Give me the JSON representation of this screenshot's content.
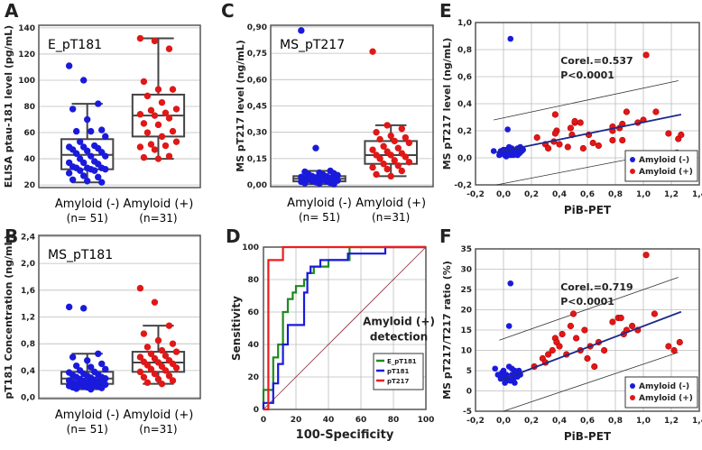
{
  "colors": {
    "neg": "#1a1adc",
    "pos": "#e01818",
    "green": "#1f8a1f",
    "blue": "#1a1adc",
    "red": "#ee1c1c",
    "grid": "#bbbbbb"
  },
  "chart_data": [
    {
      "id": "A",
      "panel_label": "A",
      "type": "box",
      "title": "E_pT181",
      "ylabel": "ELISA ptau-181 level (pg/mL)",
      "ylim": [
        18,
        142
      ],
      "yticks": [
        20,
        40,
        60,
        80,
        100,
        120,
        140
      ],
      "tick_labels": [
        "20",
        "40",
        "60",
        "80",
        "100",
        "120",
        "140"
      ],
      "groups": [
        {
          "name": "Amyloid (-)",
          "n": "(n= 51)",
          "box": {
            "min": 22,
            "q1": 32,
            "median": 43,
            "q3": 55,
            "max": 82
          },
          "values": [
            111,
            100,
            82,
            78,
            70,
            62,
            61,
            61,
            57,
            53,
            50,
            49,
            49,
            48,
            47,
            46,
            45,
            44,
            42,
            42,
            40,
            38,
            37,
            37,
            36,
            34,
            33,
            33,
            33,
            32,
            32,
            31,
            31,
            29,
            27,
            26,
            24,
            23,
            22
          ]
        },
        {
          "name": "Amyloid (+)",
          "n": "(n=31)",
          "box": {
            "min": 40,
            "q1": 57,
            "median": 73,
            "q3": 89,
            "max": 132
          },
          "values": [
            132,
            130,
            124,
            99,
            93,
            93,
            88,
            83,
            78,
            77,
            75,
            74,
            73,
            71,
            67,
            66,
            61,
            60,
            57,
            53,
            51,
            50,
            49,
            47,
            42,
            41,
            40
          ]
        }
      ]
    },
    {
      "id": "B",
      "panel_label": "B",
      "type": "box",
      "title": "MS_pT181",
      "ylabel": "pT181 Concentration (ng/mL)",
      "ylim": [
        -0.02,
        2.42
      ],
      "yticks": [
        0,
        0.4,
        0.8,
        1.2,
        1.6,
        2.0,
        2.4
      ],
      "tick_labels": [
        "0,0",
        "0,4",
        "0,8",
        "1,2",
        "1,6",
        "2,0",
        "2,4"
      ],
      "groups": [
        {
          "name": "Amyloid (-)",
          "n": "(n= 51)",
          "box": {
            "min": 0.12,
            "q1": 0.2,
            "median": 0.28,
            "q3": 0.38,
            "max": 0.65
          },
          "values": [
            1.35,
            1.33,
            0.65,
            0.6,
            0.55,
            0.5,
            0.47,
            0.45,
            0.42,
            0.4,
            0.38,
            0.37,
            0.35,
            0.34,
            0.33,
            0.32,
            0.3,
            0.3,
            0.29,
            0.28,
            0.27,
            0.26,
            0.25,
            0.24,
            0.23,
            0.22,
            0.22,
            0.21,
            0.2,
            0.2,
            0.19,
            0.18,
            0.18,
            0.17,
            0.16,
            0.16,
            0.15,
            0.15,
            0.14,
            0.13,
            0.12
          ]
        },
        {
          "name": "Amyloid (+)",
          "n": "(n=31)",
          "box": {
            "min": 0.2,
            "q1": 0.38,
            "median": 0.52,
            "q3": 0.68,
            "max": 1.07
          },
          "values": [
            1.63,
            1.42,
            1.07,
            0.95,
            0.85,
            0.8,
            0.75,
            0.7,
            0.68,
            0.65,
            0.62,
            0.6,
            0.58,
            0.55,
            0.53,
            0.52,
            0.5,
            0.48,
            0.46,
            0.44,
            0.42,
            0.4,
            0.38,
            0.35,
            0.32,
            0.3,
            0.27,
            0.25,
            0.22,
            0.2
          ]
        }
      ]
    },
    {
      "id": "C",
      "panel_label": "C",
      "type": "box",
      "title": "MS_pT217",
      "ylabel": "MS pT217 level (ng/mL)",
      "ylim": [
        -0.01,
        0.91
      ],
      "yticks": [
        0,
        0.15,
        0.3,
        0.45,
        0.6,
        0.75,
        0.9
      ],
      "tick_labels": [
        "0,00",
        "0,15",
        "0,30",
        "0,45",
        "0,60",
        "0,75",
        "0,90"
      ],
      "groups": [
        {
          "name": "Amyloid (-)",
          "n": "(n= 51)",
          "box": {
            "min": 0.005,
            "q1": 0.02,
            "median": 0.035,
            "q3": 0.05,
            "max": 0.08
          },
          "values": [
            0.88,
            0.21,
            0.08,
            0.075,
            0.07,
            0.065,
            0.06,
            0.058,
            0.055,
            0.05,
            0.048,
            0.045,
            0.042,
            0.04,
            0.038,
            0.035,
            0.033,
            0.03,
            0.028,
            0.025,
            0.022,
            0.02,
            0.018,
            0.015,
            0.012,
            0.01,
            0.008,
            0.005
          ]
        },
        {
          "name": "Amyloid (+)",
          "n": "(n=31)",
          "box": {
            "min": 0.05,
            "q1": 0.12,
            "median": 0.17,
            "q3": 0.25,
            "max": 0.34
          },
          "values": [
            0.76,
            0.34,
            0.32,
            0.3,
            0.28,
            0.27,
            0.26,
            0.25,
            0.24,
            0.22,
            0.21,
            0.2,
            0.19,
            0.18,
            0.17,
            0.17,
            0.16,
            0.15,
            0.14,
            0.13,
            0.12,
            0.11,
            0.1,
            0.09,
            0.08,
            0.06,
            0.05
          ]
        }
      ]
    },
    {
      "id": "D",
      "panel_label": "D",
      "type": "line",
      "xlabel": "100-Specificity",
      "ylabel": "Sensitivity",
      "xlim": [
        0,
        100
      ],
      "ylim": [
        0,
        100
      ],
      "ticks": [
        0,
        20,
        40,
        60,
        80,
        100
      ],
      "annotation": [
        "Amyloid (+)",
        "detection"
      ],
      "series": [
        {
          "name": "E_pT181",
          "color": "#1f8a1f",
          "points": [
            [
              0,
              0
            ],
            [
              0,
              12
            ],
            [
              6,
              12
            ],
            [
              6,
              32
            ],
            [
              9,
              32
            ],
            [
              9,
              40
            ],
            [
              12,
              40
            ],
            [
              12,
              60
            ],
            [
              15,
              60
            ],
            [
              15,
              68
            ],
            [
              18,
              68
            ],
            [
              18,
              72
            ],
            [
              20,
              72
            ],
            [
              20,
              76
            ],
            [
              25,
              76
            ],
            [
              25,
              80
            ],
            [
              27,
              80
            ],
            [
              27,
              84
            ],
            [
              31,
              84
            ],
            [
              31,
              88
            ],
            [
              37,
              88
            ],
            [
              40,
              88
            ],
            [
              40,
              92
            ],
            [
              53,
              92
            ],
            [
              53,
              100
            ],
            [
              100,
              100
            ]
          ]
        },
        {
          "name": "pT181",
          "color": "#1a1adc",
          "points": [
            [
              0,
              0
            ],
            [
              0,
              4
            ],
            [
              6,
              4
            ],
            [
              6,
              16
            ],
            [
              9,
              16
            ],
            [
              9,
              28
            ],
            [
              12,
              28
            ],
            [
              12,
              40
            ],
            [
              15,
              40
            ],
            [
              15,
              52
            ],
            [
              25,
              52
            ],
            [
              25,
              72
            ],
            [
              27,
              72
            ],
            [
              27,
              84
            ],
            [
              29,
              84
            ],
            [
              29,
              88
            ],
            [
              35,
              88
            ],
            [
              35,
              92
            ],
            [
              52,
              92
            ],
            [
              52,
              96
            ],
            [
              75,
              96
            ],
            [
              75,
              100
            ],
            [
              100,
              100
            ]
          ]
        },
        {
          "name": "pT217",
          "color": "#ee1c1c",
          "points": [
            [
              0,
              0
            ],
            [
              3,
              0
            ],
            [
              3,
              92
            ],
            [
              12,
              92
            ],
            [
              12,
              100
            ],
            [
              100,
              100
            ]
          ]
        }
      ],
      "reference_line": [
        [
          0,
          0
        ],
        [
          100,
          100
        ]
      ]
    },
    {
      "id": "E",
      "panel_label": "E",
      "type": "scatter",
      "xlabel": "PiB-PET",
      "ylabel": "MS pT217 level (ng/mL)",
      "xlim": [
        -0.2,
        1.4
      ],
      "ylim": [
        -0.2,
        1.0
      ],
      "xticks": [
        -0.2,
        0,
        0.2,
        0.4,
        0.6,
        0.8,
        1.0,
        1.2,
        1.4
      ],
      "xtick_labels": [
        "-0,2",
        "0,0",
        "0,2",
        "0,4",
        "0,6",
        "0,8",
        "1,0",
        "1,2",
        "1,4"
      ],
      "yticks": [
        -0.2,
        0,
        0.2,
        0.4,
        0.6,
        0.8,
        1.0
      ],
      "ytick_labels": [
        "-0,2",
        "0,0",
        "0,2",
        "0,4",
        "0,6",
        "0,8",
        "1,0"
      ],
      "annotation": [
        "Corel.=0.537",
        "P<0.0001"
      ],
      "legend": [
        "Amyloid (-)",
        "Amyloid (+)"
      ],
      "legend_position": "bottom-right",
      "neg": [
        [
          0.05,
          0.88
        ],
        [
          0.03,
          0.21
        ],
        [
          -0.07,
          0.05
        ],
        [
          0,
          0.04
        ],
        [
          0.02,
          0.06
        ],
        [
          0.04,
          0.08
        ],
        [
          0.06,
          0.05
        ],
        [
          0.08,
          0.03
        ],
        [
          0.1,
          0.07
        ],
        [
          0.12,
          0.08
        ],
        [
          0.14,
          0.06
        ],
        [
          -0.03,
          0.02
        ],
        [
          0.01,
          0.02
        ],
        [
          0.03,
          0.03
        ],
        [
          0.05,
          0.02
        ],
        [
          0.07,
          0.02
        ],
        [
          0.09,
          0.04
        ],
        [
          0.11,
          0.03
        ],
        [
          0.13,
          0.05
        ],
        [
          -0.02,
          0.05
        ],
        [
          0.0,
          0.06
        ],
        [
          0.02,
          0.01
        ],
        [
          0.04,
          0.04
        ],
        [
          0.06,
          0.07
        ],
        [
          0.08,
          0.05
        ],
        [
          0.1,
          0.02
        ],
        [
          0.12,
          0.04
        ],
        [
          -0.01,
          0.03
        ]
      ],
      "pos": [
        [
          0.24,
          0.15
        ],
        [
          0.3,
          0.1
        ],
        [
          0.32,
          0.07
        ],
        [
          0.36,
          0.12
        ],
        [
          0.37,
          0.32
        ],
        [
          0.38,
          0.2
        ],
        [
          0.37,
          0.18
        ],
        [
          0.4,
          0.1
        ],
        [
          0.46,
          0.08
        ],
        [
          0.48,
          0.22
        ],
        [
          0.49,
          0.17
        ],
        [
          0.51,
          0.26
        ],
        [
          0.51,
          0.27
        ],
        [
          0.55,
          0.26
        ],
        [
          0.57,
          0.07
        ],
        [
          0.61,
          0.17
        ],
        [
          0.64,
          0.11
        ],
        [
          0.68,
          0.09
        ],
        [
          0.78,
          0.23
        ],
        [
          0.78,
          0.2
        ],
        [
          0.78,
          0.13
        ],
        [
          0.83,
          0.22
        ],
        [
          0.85,
          0.25
        ],
        [
          0.85,
          0.13
        ],
        [
          0.88,
          0.34
        ],
        [
          0.96,
          0.26
        ],
        [
          1.0,
          0.28
        ],
        [
          1.02,
          0.76
        ],
        [
          1.09,
          0.34
        ],
        [
          1.18,
          0.18
        ],
        [
          1.25,
          0.14
        ],
        [
          1.27,
          0.17
        ]
      ],
      "fit": [
        [
          -0.05,
          0.04
        ],
        [
          1.27,
          0.32
        ]
      ],
      "band_upper": [
        [
          -0.07,
          0.28
        ],
        [
          1.25,
          0.57
        ]
      ],
      "band_lower": [
        [
          -0.05,
          -0.2
        ],
        [
          1.25,
          0.06
        ]
      ]
    },
    {
      "id": "F",
      "panel_label": "F",
      "type": "scatter",
      "xlabel": "PiB-PET",
      "ylabel": "MS pT217/T217  ratio (%)",
      "xlim": [
        -0.2,
        1.4
      ],
      "ylim": [
        -5,
        35
      ],
      "xticks": [
        -0.2,
        0,
        0.2,
        0.4,
        0.6,
        0.8,
        1.0,
        1.2,
        1.4
      ],
      "xtick_labels": [
        "-0,2",
        "0,0",
        "0,2",
        "0,4",
        "0,6",
        "0,8",
        "1,0",
        "1,2",
        "1,4"
      ],
      "yticks": [
        -5,
        0,
        5,
        10,
        15,
        20,
        25,
        30,
        35
      ],
      "ytick_labels": [
        "-5",
        "0",
        "5",
        "10",
        "15",
        "20",
        "25",
        "30",
        "35"
      ],
      "annotation": [
        "Corel.=0.719",
        "P<0.0001"
      ],
      "legend": [
        "Amyloid (-)",
        "Amyloid (+)"
      ],
      "legend_position": "bottom-right",
      "neg": [
        [
          0.05,
          26.5
        ],
        [
          0.04,
          16
        ],
        [
          -0.06,
          5.5
        ],
        [
          -0.04,
          4
        ],
        [
          -0.02,
          3
        ],
        [
          0,
          5
        ],
        [
          0.01,
          2
        ],
        [
          0.02,
          4
        ],
        [
          0.03,
          3
        ],
        [
          0.04,
          6
        ],
        [
          0.05,
          2.5
        ],
        [
          0.06,
          4
        ],
        [
          0.07,
          3
        ],
        [
          0.08,
          5
        ],
        [
          0.09,
          4.5
        ],
        [
          0.1,
          3.5
        ],
        [
          0.11,
          5
        ],
        [
          0.12,
          4
        ],
        [
          0.02,
          2.5
        ],
        [
          0.0,
          3.5
        ],
        [
          -0.01,
          4.5
        ],
        [
          0.06,
          5.5
        ],
        [
          0.08,
          2
        ]
      ],
      "pos": [
        [
          0.22,
          6
        ],
        [
          0.28,
          8
        ],
        [
          0.3,
          7
        ],
        [
          0.32,
          9
        ],
        [
          0.35,
          10
        ],
        [
          0.37,
          13
        ],
        [
          0.38,
          12
        ],
        [
          0.4,
          11
        ],
        [
          0.42,
          14
        ],
        [
          0.45,
          9
        ],
        [
          0.48,
          16
        ],
        [
          0.5,
          19
        ],
        [
          0.52,
          13
        ],
        [
          0.55,
          10
        ],
        [
          0.58,
          15
        ],
        [
          0.6,
          8
        ],
        [
          0.62,
          11
        ],
        [
          0.65,
          6
        ],
        [
          0.68,
          12
        ],
        [
          0.72,
          10
        ],
        [
          0.78,
          17
        ],
        [
          0.82,
          18
        ],
        [
          0.84,
          18
        ],
        [
          0.86,
          14
        ],
        [
          0.88,
          15
        ],
        [
          0.92,
          16
        ],
        [
          0.96,
          15
        ],
        [
          1.02,
          33.5
        ],
        [
          1.08,
          19
        ],
        [
          1.18,
          11
        ],
        [
          1.22,
          10
        ],
        [
          1.26,
          12
        ]
      ],
      "fit": [
        [
          -0.03,
          2.5
        ],
        [
          1.27,
          19.5
        ]
      ],
      "band_upper": [
        [
          -0.03,
          12.5
        ],
        [
          1.25,
          28
        ]
      ],
      "band_lower": [
        [
          0.0,
          -5
        ],
        [
          1.25,
          9.5
        ]
      ]
    }
  ]
}
